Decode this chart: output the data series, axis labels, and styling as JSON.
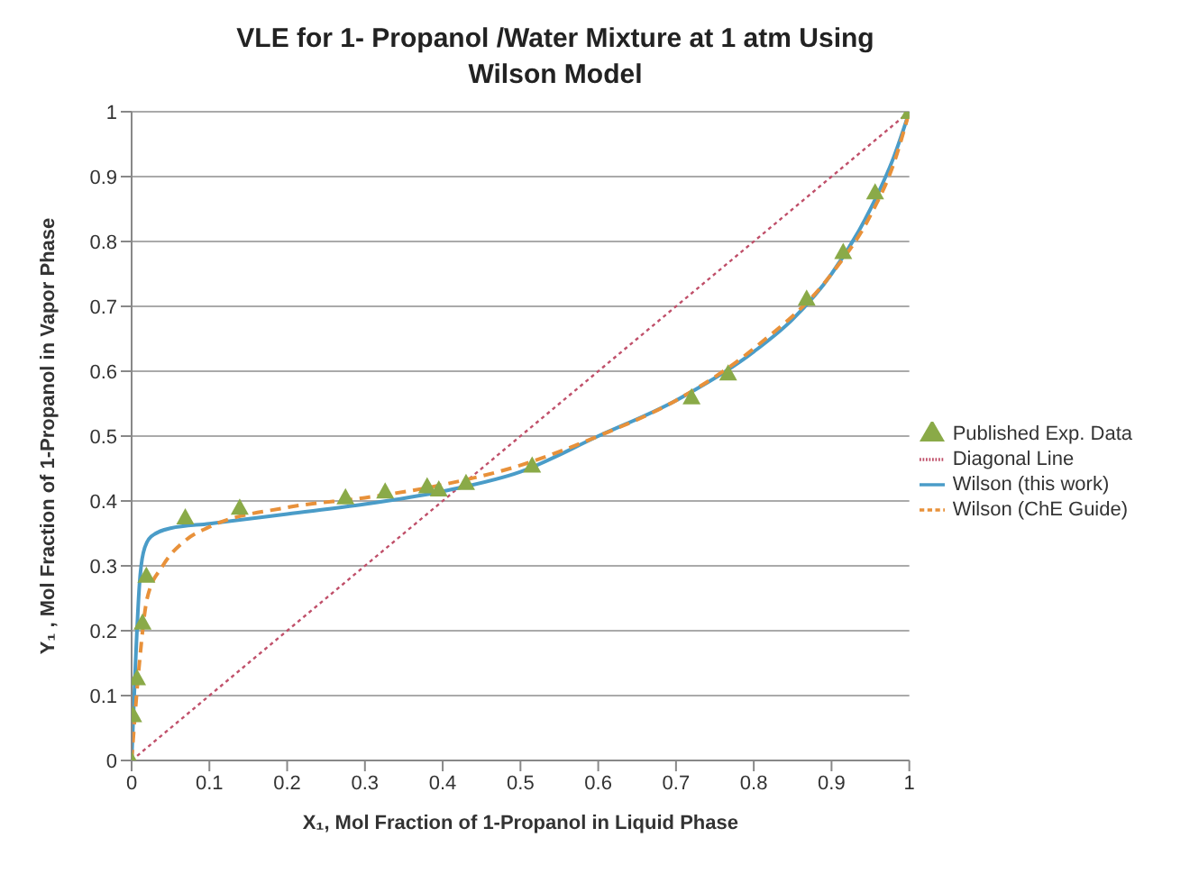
{
  "chart_data": {
    "type": "line",
    "title": "VLE for 1- Propanol /Water  Mixture at 1 atm Using Wilson Model",
    "xlabel": "X₁, Mol Fraction of 1-Propanol in Liquid Phase",
    "ylabel": "Y₁ , Mol Fraction of 1-Propanol in Vapor Phase",
    "xlim": [
      0,
      1
    ],
    "xticks": [
      0,
      0.1,
      0.2,
      0.3,
      0.4,
      0.5,
      0.6,
      0.7,
      0.8,
      0.9,
      1
    ],
    "ylim": [
      0,
      1
    ],
    "yticks": [
      0,
      0.1,
      0.2,
      0.3,
      0.4,
      0.5,
      0.6,
      0.7,
      0.8,
      0.9,
      1
    ],
    "grid": "y",
    "legend": "right",
    "series": [
      {
        "name": "Published Exp. Data",
        "type": "scatter",
        "marker": "triangle",
        "color": "#8aaa48",
        "x": [
          0,
          0.002,
          0.007,
          0.014,
          0.019,
          0.069,
          0.139,
          0.275,
          0.326,
          0.38,
          0.395,
          0.43,
          0.515,
          0.72,
          0.767,
          0.868,
          0.915,
          0.956,
          1
        ],
        "values": [
          0,
          0.07,
          0.127,
          0.213,
          0.285,
          0.375,
          0.39,
          0.406,
          0.415,
          0.423,
          0.418,
          0.428,
          0.455,
          0.56,
          0.597,
          0.712,
          0.784,
          0.876,
          1
        ]
      },
      {
        "name": "Diagonal Line",
        "line_style": "dotted",
        "color": "#c0506a",
        "x": [
          0,
          1
        ],
        "values": [
          0,
          1
        ]
      },
      {
        "name": "Wilson (this work)",
        "line_style": "solid",
        "color": "#4a9cc8",
        "x": [
          0,
          0.005,
          0.01,
          0.015,
          0.025,
          0.05,
          0.1,
          0.2,
          0.3,
          0.4,
          0.5,
          0.6,
          0.7,
          0.8,
          0.85,
          0.9,
          0.95,
          0.98,
          1
        ],
        "values": [
          0,
          0.15,
          0.27,
          0.32,
          0.345,
          0.358,
          0.365,
          0.38,
          0.395,
          0.415,
          0.445,
          0.5,
          0.555,
          0.63,
          0.68,
          0.75,
          0.85,
          0.93,
          1
        ]
      },
      {
        "name": "Wilson (ChE Guide)",
        "line_style": "dashed",
        "color": "#e8913a",
        "x": [
          0,
          0.01,
          0.02,
          0.04,
          0.07,
          0.1,
          0.2,
          0.3,
          0.4,
          0.5,
          0.6,
          0.7,
          0.8,
          0.9,
          0.95,
          0.98,
          1
        ],
        "values": [
          0,
          0.15,
          0.25,
          0.3,
          0.34,
          0.36,
          0.39,
          0.405,
          0.425,
          0.455,
          0.5,
          0.555,
          0.635,
          0.75,
          0.84,
          0.92,
          1
        ]
      }
    ]
  }
}
